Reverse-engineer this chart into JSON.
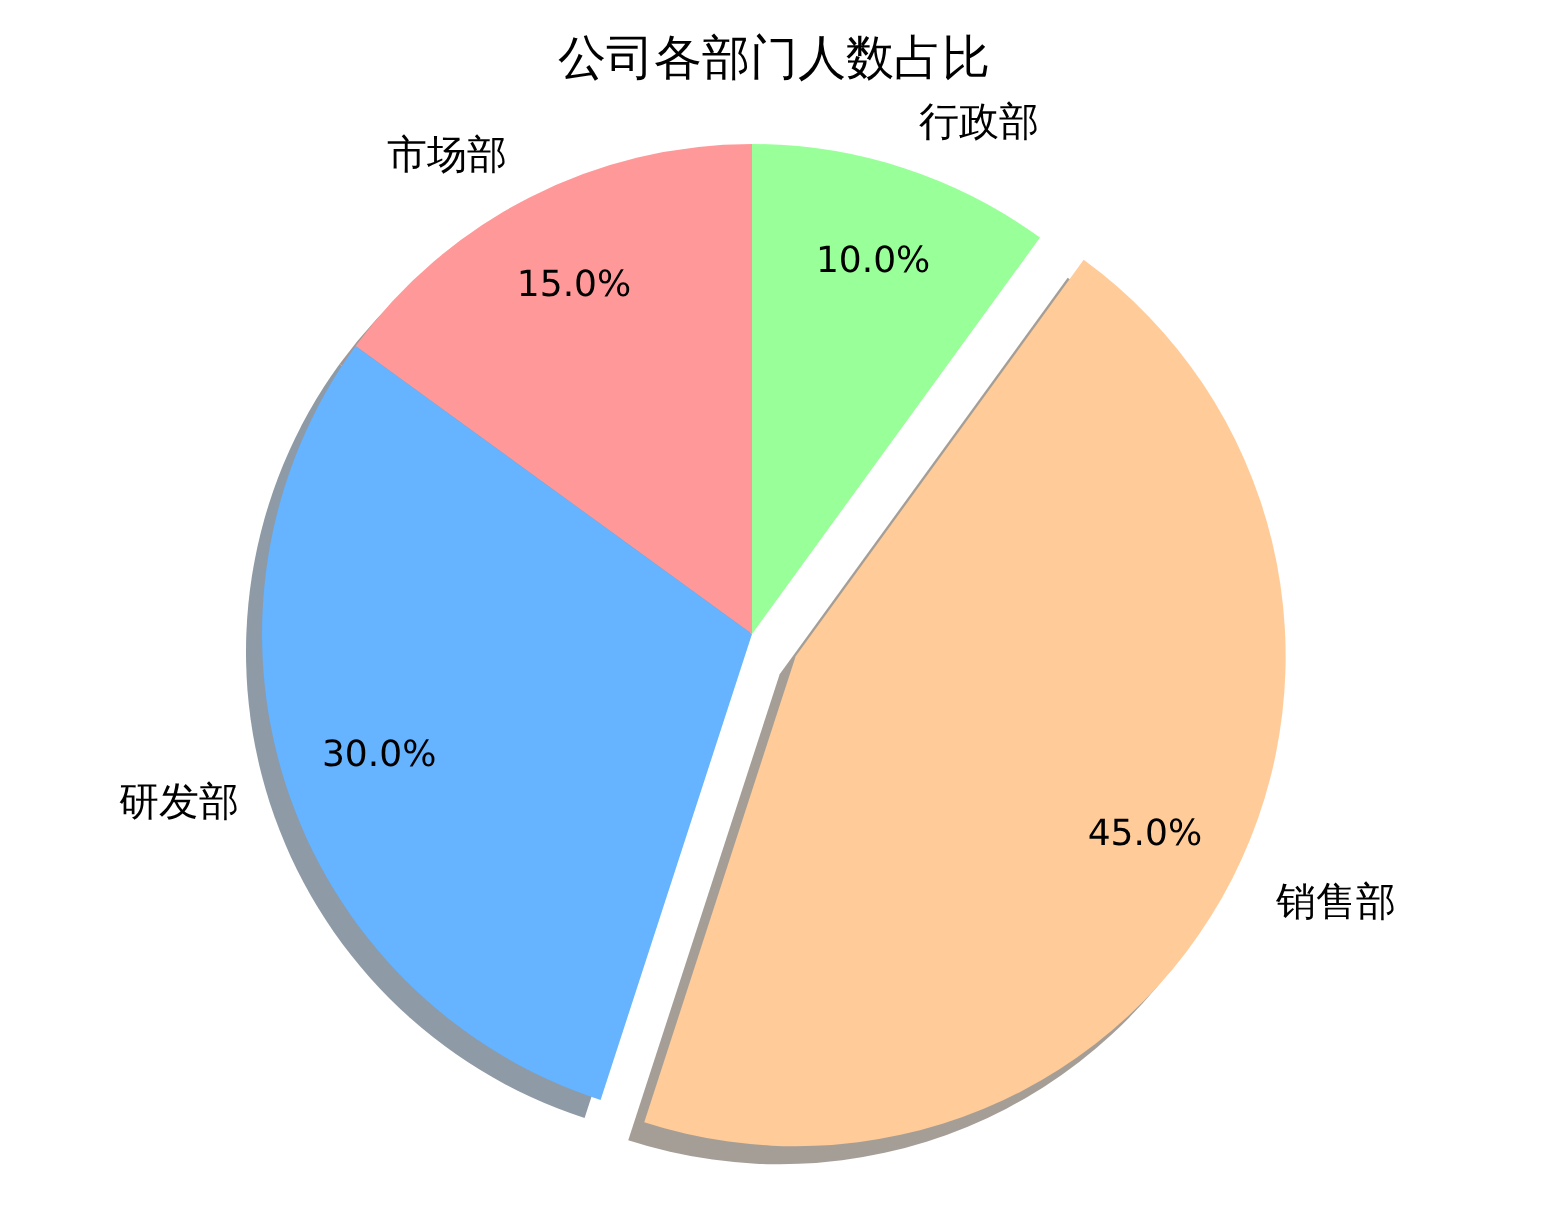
{
  "chart_data": {
    "type": "pie",
    "title": "公司各部门人数占比",
    "categories": [
      "市场部",
      "研发部",
      "销售部",
      "行政部"
    ],
    "values": [
      15,
      30,
      45,
      10
    ],
    "colors": [
      "#ff9999",
      "#66b3ff",
      "#ffcc99",
      "#99ff99"
    ],
    "value_labels": [
      "15.0%",
      "30.0%",
      "45.0%",
      "10.0%"
    ]
  }
}
